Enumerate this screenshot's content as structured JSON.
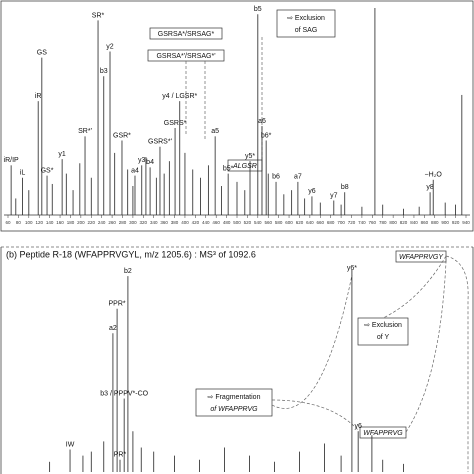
{
  "chart_data": [
    {
      "type": "stick",
      "color": "#222",
      "xlim": [
        60,
        940
      ],
      "ylim": [
        0,
        100
      ],
      "xticks": [
        60,
        80,
        100,
        120,
        140,
        160,
        180,
        200,
        220,
        240,
        260,
        280,
        300,
        320,
        340,
        360,
        380,
        400,
        420,
        440,
        460,
        480,
        500,
        520,
        540,
        560,
        580,
        600,
        620,
        640,
        660,
        680,
        700,
        720,
        740,
        760,
        780,
        800,
        820,
        840,
        860,
        880,
        900,
        920,
        940
      ],
      "x": [
        66,
        88,
        118,
        125,
        135,
        164,
        208,
        233,
        244,
        256,
        279,
        304,
        317,
        333,
        352,
        381,
        390,
        458,
        483,
        525,
        540,
        548,
        556,
        575,
        617,
        644,
        686,
        707,
        871,
        877,
        765,
        932,
        75,
        100,
        145,
        172,
        185,
        198,
        220,
        265,
        290,
        300,
        325,
        345,
        360,
        370,
        400,
        415,
        430,
        445,
        470,
        500,
        515,
        560,
        590,
        605,
        630,
        660,
        700,
        740,
        780,
        820,
        850,
        900,
        920
      ],
      "values": [
        24,
        18,
        55,
        76,
        19,
        27,
        38,
        94,
        67,
        79,
        36,
        19,
        24,
        23,
        33,
        42,
        55,
        38,
        20,
        26,
        97,
        43,
        36,
        16,
        16,
        9,
        7,
        11,
        11,
        17,
        100,
        58,
        8,
        12,
        15,
        20,
        12,
        25,
        18,
        30,
        22,
        14,
        28,
        18,
        20,
        26,
        30,
        22,
        18,
        24,
        14,
        16,
        12,
        20,
        10,
        12,
        8,
        6,
        5,
        4,
        5,
        3,
        4,
        6,
        5
      ],
      "labels": [
        "iR/IP",
        "iL",
        "iR",
        "GS",
        "GS*",
        "y1",
        "SR*'",
        "SR*",
        "b3",
        "y2",
        "GSR*",
        "a4",
        "y3",
        "b4",
        "GSRS*'",
        "GSRS*",
        "y4 / LGSR*",
        "a5",
        "b5*",
        "y5*",
        "b5",
        "a6",
        "b6*",
        "b6",
        "a7",
        "y6",
        "y7",
        "b8",
        "y8",
        "−H₂O",
        null,
        null,
        null,
        null,
        null,
        null,
        null,
        null,
        null,
        null,
        null,
        null,
        null,
        null,
        null,
        null,
        null,
        null,
        null,
        null,
        null,
        null,
        null,
        null,
        null,
        null,
        null,
        null,
        null,
        null,
        null,
        null,
        null,
        null,
        null
      ],
      "annotations": [
        "⇨ Exclusion",
        "of SAG",
        "GSRSA*/SRSAG*",
        "GSRSA*'/SRSAG*'",
        "ALGSR"
      ]
    },
    {
      "type": "stick",
      "color": "#222",
      "title": "(b)  Peptide R-18 (WFAPPRVGYL, m/z 1205.6) : MS³ of 1092.6",
      "xlim": [
        100,
        1200
      ],
      "ylim": [
        0,
        100
      ],
      "x": [
        362,
        352,
        388,
        379,
        249,
        369,
        926,
        941,
        974,
        200,
        280,
        300,
        330,
        400,
        420,
        450,
        500,
        560,
        620,
        680,
        740,
        800,
        860,
        900,
        1000,
        1050
      ],
      "values": [
        80,
        68,
        96,
        36,
        11,
        6,
        99,
        20,
        18,
        5,
        8,
        10,
        15,
        20,
        12,
        10,
        8,
        6,
        12,
        8,
        5,
        10,
        14,
        8,
        6,
        4
      ],
      "labels": [
        "PPR*",
        "a2",
        "b2",
        "b3 / PPPV*-CO",
        "IW",
        "PR*",
        "y6*",
        "y6",
        null,
        null,
        null,
        null,
        null,
        null,
        null,
        null,
        null,
        null,
        null,
        null,
        null,
        null,
        null,
        null,
        null,
        null
      ],
      "annotations": [
        "WFAPPRVGY",
        "⇨ Exclusion",
        "of Y",
        "⇨ Fragmentation",
        "of WFAPPRVG",
        "WFAPPRVG"
      ]
    }
  ]
}
